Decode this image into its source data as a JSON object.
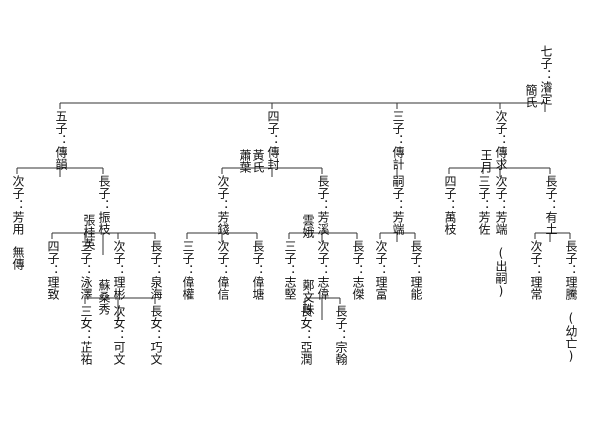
{
  "nodes": [
    {
      "label": "七子：濬定",
      "spouses": [
        "簡氏"
      ]
    },
    {
      "label": "五子：傳韻"
    },
    {
      "label": "四子：傳封",
      "spouses": [
        "黃氏",
        "蕭葉"
      ]
    },
    {
      "label": "三子：傳計"
    },
    {
      "label": "次子：傳求",
      "spouses": [
        "王月"
      ]
    },
    {
      "label": "次子：芳用",
      "note": "無傳"
    },
    {
      "label": "長子：振枝",
      "spouses": [
        "張桂英"
      ]
    },
    {
      "label": "四子：理致"
    },
    {
      "label": "三子：泳澤"
    },
    {
      "label": "次子：理彬",
      "spouses": [
        "蘇桑秀"
      ]
    },
    {
      "label": "長子：泉海"
    },
    {
      "label": "三女：芷祐"
    },
    {
      "label": "次女：可文"
    },
    {
      "label": "長女：巧文"
    },
    {
      "label": "次子：芳錢"
    },
    {
      "label": "長子：芳溪",
      "spouses": [
        "雲娥"
      ]
    },
    {
      "label": "三子：偉權"
    },
    {
      "label": "次子：偉信"
    },
    {
      "label": "長子：偉塘"
    },
    {
      "label": "三子：志堅"
    },
    {
      "label": "次子：志偉",
      "spouses": [
        "鄭文珠"
      ]
    },
    {
      "label": "長子：志傑"
    },
    {
      "label": "長女：亞潤"
    },
    {
      "label": "長子：宗翰"
    },
    {
      "label": "嗣子：芳端"
    },
    {
      "label": "次子：理富"
    },
    {
      "label": "長子：理能"
    },
    {
      "label": "四子：萬枝"
    },
    {
      "label": "三子：芳佐"
    },
    {
      "label": "次子：芳端",
      "note": "(出嗣)"
    },
    {
      "label": "長子：有土"
    },
    {
      "label": "次子：理常"
    },
    {
      "label": "長子：理騰",
      "note": "(幼亡)"
    }
  ]
}
